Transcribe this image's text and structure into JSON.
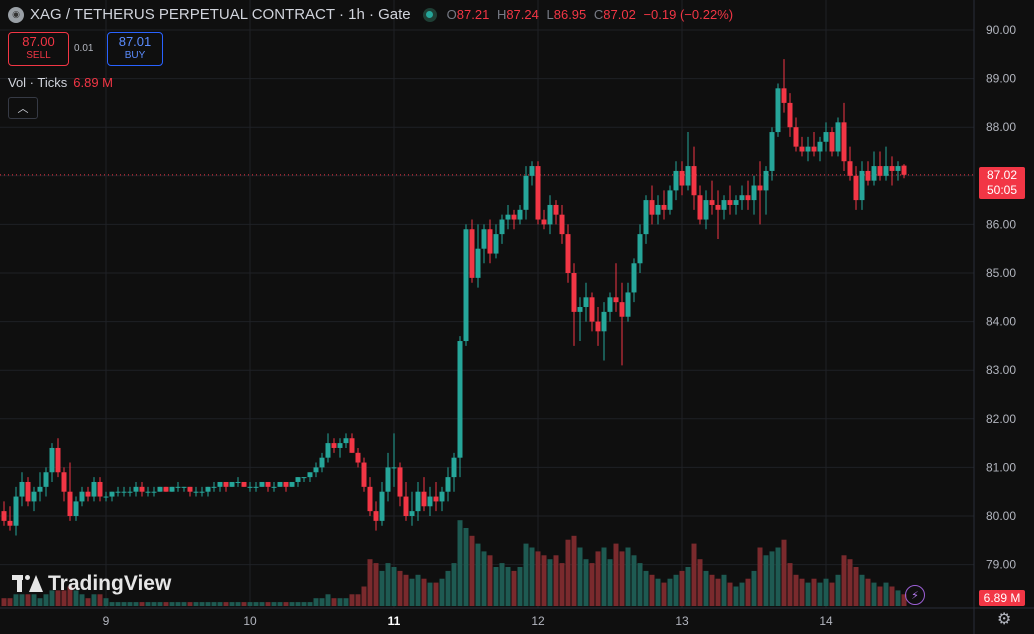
{
  "header": {
    "title": "XAG / TETHERUS PERPETUAL CONTRACT · 1h · Gate",
    "ohlc": [
      {
        "k": "O",
        "v": "87.21"
      },
      {
        "k": "H",
        "v": "87.24"
      },
      {
        "k": "L",
        "v": "86.95"
      },
      {
        "k": "C",
        "v": "87.02"
      }
    ],
    "change": "−0.19 (−0.22%)"
  },
  "trade": {
    "sell_price": "87.00",
    "sell_label": "SELL",
    "spread": "0.01",
    "buy_price": "87.01",
    "buy_label": "BUY"
  },
  "volume": {
    "label": "Vol · Ticks",
    "value": "6.89 M"
  },
  "price_axis_tag": {
    "price": "87.02",
    "countdown": "50:05",
    "volume": "6.89 M"
  },
  "brand": "TradingView",
  "icons": [
    "symbol-icon",
    "status-dot-icon",
    "chevron-up-icon",
    "tradingview-logo-icon",
    "flash-icon",
    "gear-icon"
  ],
  "colors": {
    "up": "#26a69a",
    "down": "#f23645",
    "background": "#0f0f0f",
    "grid": "#1f2126"
  },
  "chart_data": {
    "type": "candlestick",
    "y_ticks": [
      79,
      80,
      81,
      82,
      83,
      84,
      85,
      86,
      87,
      88,
      89,
      90
    ],
    "ylim": [
      78.5,
      90.2
    ],
    "x_ticks": [
      {
        "label": "9",
        "index": 17
      },
      {
        "label": "10",
        "index": 41
      },
      {
        "label": "11",
        "index": 65
      },
      {
        "label": "12",
        "index": 89
      },
      {
        "label": "13",
        "index": 113
      },
      {
        "label": "14",
        "index": 137
      }
    ],
    "last_price": 87.02,
    "candles": [
      [
        80.1,
        80.3,
        79.8,
        79.9,
        0.2
      ],
      [
        79.9,
        80.2,
        79.7,
        79.8,
        0.2
      ],
      [
        79.8,
        80.6,
        79.6,
        80.4,
        0.3
      ],
      [
        80.4,
        80.9,
        80.2,
        80.7,
        0.3
      ],
      [
        80.7,
        80.8,
        80.2,
        80.3,
        0.3
      ],
      [
        80.3,
        80.6,
        80.1,
        80.5,
        0.3
      ],
      [
        80.5,
        80.9,
        80.3,
        80.6,
        0.2
      ],
      [
        80.6,
        81.0,
        80.4,
        80.9,
        0.3
      ],
      [
        80.9,
        81.5,
        80.7,
        81.4,
        0.4
      ],
      [
        81.4,
        81.6,
        80.8,
        80.9,
        0.4
      ],
      [
        80.9,
        81.0,
        80.3,
        80.5,
        0.4
      ],
      [
        80.5,
        81.1,
        79.9,
        80.0,
        0.5
      ],
      [
        80.0,
        80.4,
        79.9,
        80.3,
        0.4
      ],
      [
        80.3,
        80.6,
        80.2,
        80.5,
        0.3
      ],
      [
        80.5,
        80.6,
        80.3,
        80.4,
        0.2
      ],
      [
        80.4,
        80.8,
        80.3,
        80.7,
        0.3
      ],
      [
        80.7,
        80.8,
        80.3,
        80.4,
        0.3
      ],
      [
        80.4,
        80.5,
        80.3,
        80.4,
        0.2
      ],
      [
        80.4,
        80.5,
        80.3,
        80.5,
        0.1
      ],
      [
        80.5,
        80.6,
        80.4,
        80.5,
        0.1
      ],
      [
        80.5,
        80.6,
        80.4,
        80.5,
        0.1
      ],
      [
        80.5,
        80.6,
        80.4,
        80.5,
        0.1
      ],
      [
        80.5,
        80.7,
        80.4,
        80.6,
        0.1
      ],
      [
        80.6,
        80.7,
        80.4,
        80.5,
        0.1
      ],
      [
        80.5,
        80.6,
        80.4,
        80.5,
        0.1
      ],
      [
        80.5,
        80.6,
        80.4,
        80.5,
        0.1
      ],
      [
        80.5,
        80.6,
        80.5,
        80.6,
        0.1
      ],
      [
        80.6,
        80.6,
        80.5,
        80.5,
        0.1
      ],
      [
        80.5,
        80.6,
        80.5,
        80.6,
        0.1
      ],
      [
        80.6,
        80.7,
        80.5,
        80.6,
        0.1
      ],
      [
        80.6,
        80.6,
        80.5,
        80.6,
        0.1
      ],
      [
        80.6,
        80.6,
        80.4,
        80.5,
        0.1
      ],
      [
        80.5,
        80.6,
        80.4,
        80.5,
        0.1
      ],
      [
        80.5,
        80.6,
        80.4,
        80.5,
        0.1
      ],
      [
        80.5,
        80.6,
        80.4,
        80.6,
        0.1
      ],
      [
        80.6,
        80.7,
        80.5,
        80.6,
        0.1
      ],
      [
        80.6,
        80.7,
        80.5,
        80.7,
        0.1
      ],
      [
        80.7,
        80.7,
        80.5,
        80.6,
        0.1
      ],
      [
        80.6,
        80.7,
        80.6,
        80.7,
        0.1
      ],
      [
        80.7,
        80.8,
        80.6,
        80.7,
        0.1
      ],
      [
        80.7,
        80.7,
        80.6,
        80.6,
        0.1
      ],
      [
        80.6,
        80.7,
        80.5,
        80.6,
        0.1
      ],
      [
        80.6,
        80.7,
        80.5,
        80.6,
        0.1
      ],
      [
        80.6,
        80.7,
        80.6,
        80.7,
        0.1
      ],
      [
        80.7,
        80.7,
        80.5,
        80.6,
        0.1
      ],
      [
        80.6,
        80.7,
        80.5,
        80.6,
        0.1
      ],
      [
        80.6,
        80.7,
        80.6,
        80.7,
        0.1
      ],
      [
        80.7,
        80.7,
        80.5,
        80.6,
        0.1
      ],
      [
        80.6,
        80.7,
        80.6,
        80.7,
        0.1
      ],
      [
        80.7,
        80.8,
        80.6,
        80.8,
        0.1
      ],
      [
        80.8,
        80.8,
        80.7,
        80.8,
        0.1
      ],
      [
        80.8,
        80.9,
        80.7,
        80.9,
        0.1
      ],
      [
        80.9,
        81.1,
        80.8,
        81.0,
        0.2
      ],
      [
        81.0,
        81.3,
        80.9,
        81.2,
        0.2
      ],
      [
        81.2,
        81.7,
        81.1,
        81.5,
        0.3
      ],
      [
        81.5,
        81.6,
        81.3,
        81.4,
        0.2
      ],
      [
        81.4,
        81.6,
        81.2,
        81.5,
        0.2
      ],
      [
        81.5,
        81.7,
        81.4,
        81.6,
        0.2
      ],
      [
        81.6,
        81.7,
        81.3,
        81.3,
        0.3
      ],
      [
        81.3,
        81.4,
        81.0,
        81.1,
        0.3
      ],
      [
        81.1,
        81.2,
        80.5,
        80.6,
        0.5
      ],
      [
        80.6,
        80.8,
        80.0,
        80.1,
        1.2
      ],
      [
        80.1,
        80.3,
        79.7,
        79.9,
        1.1
      ],
      [
        79.9,
        80.7,
        79.8,
        80.5,
        0.9
      ],
      [
        80.5,
        81.3,
        80.3,
        81.0,
        1.1
      ],
      [
        81.0,
        81.7,
        80.6,
        81.0,
        1.0
      ],
      [
        81.0,
        81.1,
        80.2,
        80.4,
        0.9
      ],
      [
        80.4,
        80.7,
        79.9,
        80.0,
        0.8
      ],
      [
        80.0,
        80.5,
        79.8,
        80.1,
        0.7
      ],
      [
        80.1,
        80.7,
        79.9,
        80.5,
        0.8
      ],
      [
        80.5,
        80.8,
        80.1,
        80.2,
        0.7
      ],
      [
        80.2,
        80.6,
        80.0,
        80.4,
        0.6
      ],
      [
        80.4,
        80.7,
        80.1,
        80.3,
        0.6
      ],
      [
        80.3,
        80.6,
        80.1,
        80.5,
        0.7
      ],
      [
        80.5,
        81.0,
        80.3,
        80.8,
        0.9
      ],
      [
        80.8,
        81.3,
        80.5,
        81.2,
        1.1
      ],
      [
        81.2,
        83.7,
        80.8,
        83.6,
        2.2
      ],
      [
        83.6,
        86.0,
        83.5,
        85.9,
        2.0
      ],
      [
        85.9,
        86.1,
        84.8,
        84.9,
        1.8
      ],
      [
        84.9,
        86.0,
        84.7,
        85.5,
        1.6
      ],
      [
        85.5,
        86.0,
        85.2,
        85.9,
        1.4
      ],
      [
        85.9,
        86.1,
        85.2,
        85.4,
        1.3
      ],
      [
        85.4,
        86.0,
        85.3,
        85.8,
        1.0
      ],
      [
        85.8,
        86.2,
        85.6,
        86.1,
        1.1
      ],
      [
        86.1,
        86.4,
        85.9,
        86.2,
        1.0
      ],
      [
        86.2,
        86.3,
        85.9,
        86.1,
        0.9
      ],
      [
        86.1,
        86.4,
        86.0,
        86.3,
        1.0
      ],
      [
        86.3,
        87.2,
        86.1,
        87.0,
        1.6
      ],
      [
        87.0,
        87.3,
        86.8,
        87.2,
        1.5
      ],
      [
        87.2,
        87.3,
        86.0,
        86.1,
        1.4
      ],
      [
        86.1,
        86.3,
        85.9,
        86.0,
        1.3
      ],
      [
        86.0,
        86.6,
        85.8,
        86.4,
        1.2
      ],
      [
        86.4,
        86.5,
        86.0,
        86.2,
        1.3
      ],
      [
        86.2,
        86.4,
        85.6,
        85.8,
        1.1
      ],
      [
        85.8,
        86.0,
        84.8,
        85.0,
        1.7
      ],
      [
        85.0,
        85.2,
        83.5,
        84.2,
        1.8
      ],
      [
        84.2,
        84.5,
        83.6,
        84.3,
        1.5
      ],
      [
        84.3,
        84.8,
        84.0,
        84.5,
        1.2
      ],
      [
        84.5,
        84.6,
        83.8,
        84.0,
        1.1
      ],
      [
        84.0,
        84.3,
        83.5,
        83.8,
        1.4
      ],
      [
        83.8,
        84.4,
        83.2,
        84.2,
        1.5
      ],
      [
        84.2,
        84.6,
        84.0,
        84.5,
        1.2
      ],
      [
        84.5,
        85.2,
        84.2,
        84.4,
        1.6
      ],
      [
        84.4,
        84.8,
        83.1,
        84.1,
        1.4
      ],
      [
        84.1,
        84.8,
        84.0,
        84.6,
        1.5
      ],
      [
        84.6,
        85.3,
        84.4,
        85.2,
        1.3
      ],
      [
        85.2,
        86.0,
        85.0,
        85.8,
        1.1
      ],
      [
        85.8,
        86.6,
        85.6,
        86.5,
        0.9
      ],
      [
        86.5,
        86.8,
        86.0,
        86.2,
        0.8
      ],
      [
        86.2,
        86.6,
        86.0,
        86.4,
        0.7
      ],
      [
        86.4,
        86.7,
        86.1,
        86.3,
        0.6
      ],
      [
        86.3,
        86.8,
        86.2,
        86.7,
        0.7
      ],
      [
        86.7,
        87.3,
        86.5,
        87.1,
        0.8
      ],
      [
        87.1,
        87.3,
        86.6,
        86.8,
        0.9
      ],
      [
        86.8,
        87.9,
        86.7,
        87.2,
        1.0
      ],
      [
        87.2,
        87.6,
        86.3,
        86.6,
        1.6
      ],
      [
        86.6,
        86.8,
        86.0,
        86.1,
        1.2
      ],
      [
        86.1,
        86.7,
        85.9,
        86.5,
        0.9
      ],
      [
        86.5,
        86.9,
        86.2,
        86.4,
        0.8
      ],
      [
        86.4,
        86.7,
        85.7,
        86.3,
        0.7
      ],
      [
        86.3,
        86.6,
        86.1,
        86.5,
        0.8
      ],
      [
        86.5,
        86.8,
        86.2,
        86.4,
        0.6
      ],
      [
        86.4,
        86.6,
        86.2,
        86.5,
        0.5
      ],
      [
        86.5,
        86.8,
        86.3,
        86.6,
        0.6
      ],
      [
        86.6,
        86.9,
        86.3,
        86.5,
        0.7
      ],
      [
        86.5,
        87.0,
        86.2,
        86.8,
        0.9
      ],
      [
        86.8,
        87.3,
        86.0,
        86.7,
        1.5
      ],
      [
        86.7,
        87.2,
        86.2,
        87.1,
        1.3
      ],
      [
        87.1,
        88.0,
        86.9,
        87.9,
        1.4
      ],
      [
        87.9,
        88.9,
        87.8,
        88.8,
        1.5
      ],
      [
        88.8,
        89.4,
        88.3,
        88.5,
        1.7
      ],
      [
        88.5,
        88.7,
        87.8,
        88.0,
        1.1
      ],
      [
        88.0,
        88.2,
        87.5,
        87.6,
        0.8
      ],
      [
        87.6,
        87.8,
        87.4,
        87.5,
        0.7
      ],
      [
        87.5,
        87.8,
        87.3,
        87.6,
        0.6
      ],
      [
        87.6,
        87.9,
        87.4,
        87.5,
        0.7
      ],
      [
        87.5,
        87.8,
        87.3,
        87.7,
        0.6
      ],
      [
        87.7,
        88.1,
        87.5,
        87.9,
        0.7
      ],
      [
        87.9,
        88.0,
        87.4,
        87.5,
        0.6
      ],
      [
        87.5,
        88.2,
        87.4,
        88.1,
        0.8
      ],
      [
        88.1,
        88.5,
        87.1,
        87.3,
        1.3
      ],
      [
        87.3,
        87.6,
        86.9,
        87.0,
        1.2
      ],
      [
        87.0,
        87.2,
        86.3,
        86.5,
        1.0
      ],
      [
        86.5,
        87.3,
        86.3,
        87.1,
        0.8
      ],
      [
        87.1,
        87.3,
        86.8,
        86.9,
        0.7
      ],
      [
        86.9,
        87.5,
        86.8,
        87.2,
        0.6
      ],
      [
        87.2,
        87.5,
        86.9,
        87.0,
        0.5
      ],
      [
        87.0,
        87.6,
        86.9,
        87.2,
        0.6
      ],
      [
        87.2,
        87.4,
        86.8,
        87.1,
        0.5
      ],
      [
        87.1,
        87.3,
        86.9,
        87.2,
        0.4
      ],
      [
        87.21,
        87.24,
        86.95,
        87.02,
        0.3
      ]
    ]
  }
}
